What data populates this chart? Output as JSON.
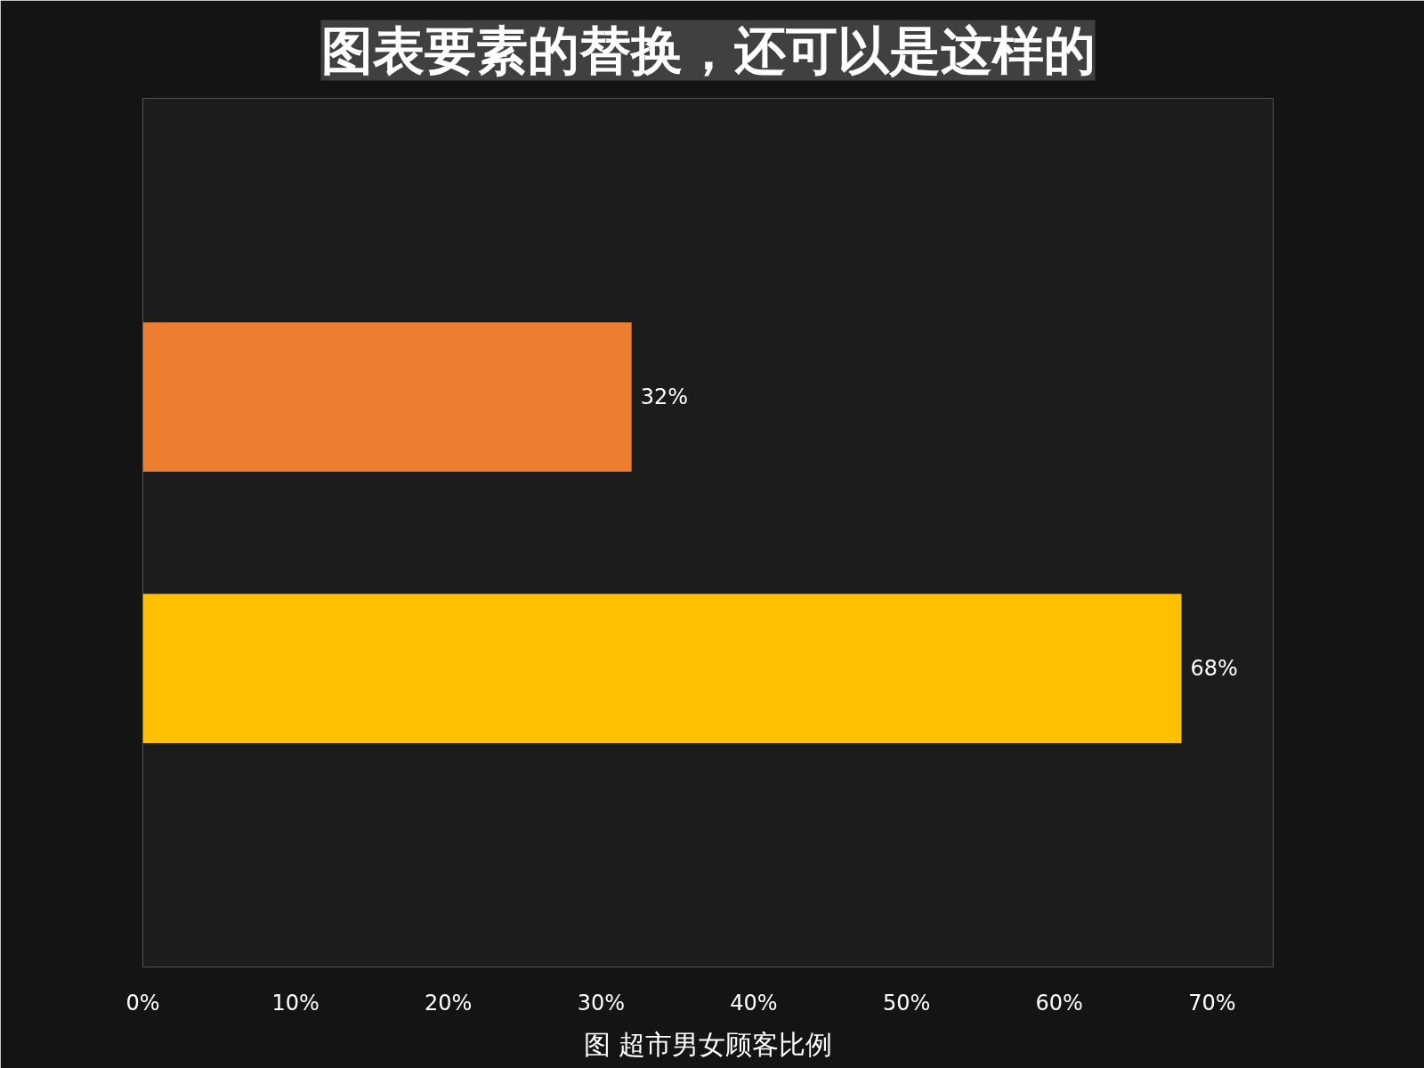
{
  "chart_data": {
    "type": "bar",
    "orientation": "horizontal",
    "title": "图表要素的替换，还可以是这样的",
    "categories": [
      null,
      null
    ],
    "values": [
      32,
      68
    ],
    "colors": [
      "#ed7d31",
      "#ffc000"
    ],
    "value_labels": [
      "32%",
      "68%"
    ],
    "xlim": [
      0,
      74
    ],
    "xticks": [
      {
        "value": 0,
        "label": "0%"
      },
      {
        "value": 10,
        "label": "10%"
      },
      {
        "value": 20,
        "label": "20%"
      },
      {
        "value": 30,
        "label": "30%"
      },
      {
        "value": 40,
        "label": "40%"
      },
      {
        "value": 50,
        "label": "50%"
      },
      {
        "value": 60,
        "label": "60%"
      },
      {
        "value": 70,
        "label": "70%"
      }
    ],
    "tick_labels": "x",
    "annotations": [
      "图 超市男女顾客比例"
    ]
  }
}
